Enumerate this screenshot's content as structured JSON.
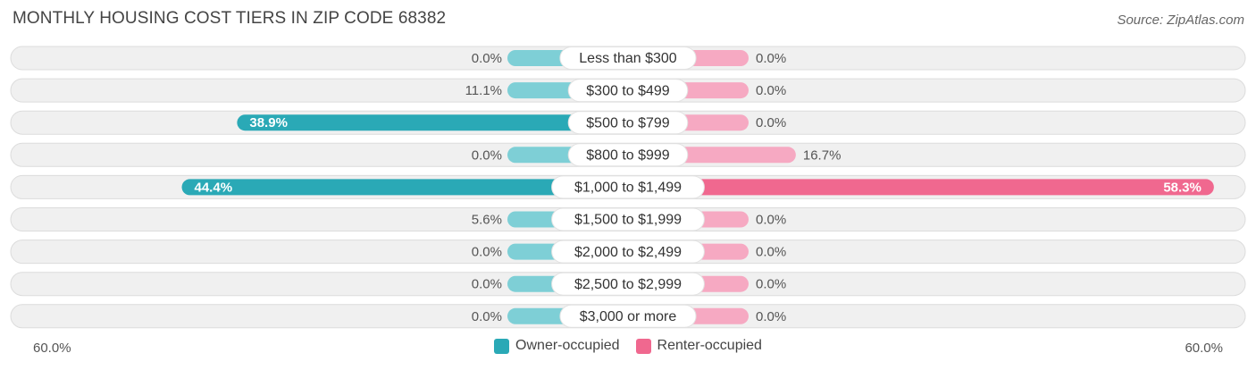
{
  "title": "MONTHLY HOUSING COST TIERS IN ZIP CODE 68382",
  "source": "Source: ZipAtlas.com",
  "axis": {
    "left_label": "60.0%",
    "right_label": "60.0%"
  },
  "legend": {
    "owner_label": "Owner-occupied",
    "renter_label": "Renter-occupied"
  },
  "colors": {
    "owner_light": "#7ecfd6",
    "owner_dark": "#2aa9b6",
    "renter_light": "#f6a9c2",
    "renter_dark": "#f0688f",
    "row_bg": "#f0f0f0",
    "row_border": "#dcdcdc"
  },
  "chart_data": {
    "type": "bar",
    "orientation": "diverging-horizontal",
    "title": "MONTHLY HOUSING COST TIERS IN ZIP CODE 68382",
    "xlim": [
      -60,
      60
    ],
    "categories": [
      "Less than $300",
      "$300 to $499",
      "$500 to $799",
      "$800 to $999",
      "$1,000 to $1,499",
      "$1,500 to $1,999",
      "$2,000 to $2,499",
      "$2,500 to $2,999",
      "$3,000 or more"
    ],
    "series": [
      {
        "name": "Owner-occupied",
        "values": [
          0.0,
          11.1,
          38.9,
          0.0,
          44.4,
          5.6,
          0.0,
          0.0,
          0.0
        ],
        "labels": [
          "0.0%",
          "11.1%",
          "38.9%",
          "0.0%",
          "44.4%",
          "5.6%",
          "0.0%",
          "0.0%",
          "0.0%"
        ]
      },
      {
        "name": "Renter-occupied",
        "values": [
          0.0,
          0.0,
          0.0,
          16.7,
          58.3,
          0.0,
          0.0,
          0.0,
          0.0
        ],
        "labels": [
          "0.0%",
          "0.0%",
          "0.0%",
          "16.7%",
          "58.3%",
          "0.0%",
          "0.0%",
          "0.0%",
          "0.0%"
        ]
      }
    ]
  }
}
